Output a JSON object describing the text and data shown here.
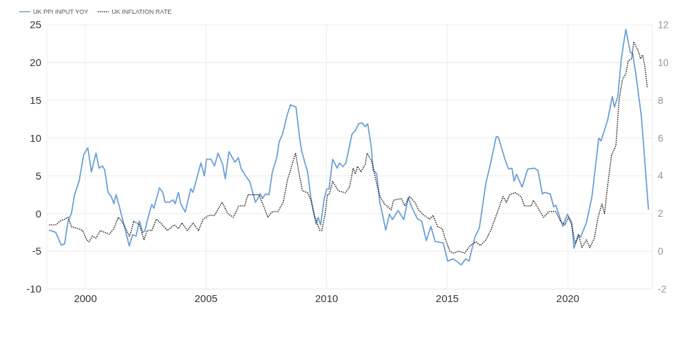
{
  "chart_data": {
    "type": "line",
    "legend": "top left",
    "grid": true,
    "marker": "none",
    "xlim": [
      1998.4,
      2023.5
    ],
    "xticks": [
      2000,
      2005,
      2010,
      2015,
      2020
    ],
    "ylim": [
      -10,
      25
    ],
    "yticks": [
      -10,
      -5,
      0,
      5,
      10,
      15,
      20,
      25
    ],
    "y2lim": [
      -2,
      12
    ],
    "y2ticks": [
      -2,
      0,
      2,
      4,
      6,
      8,
      10,
      12
    ],
    "series": [
      {
        "name": "UK PPI INPUT YOY",
        "color": "#6a9fd8",
        "line_style": "solid",
        "x": [
          1998.5,
          1998.77,
          1999.0,
          1999.14,
          1999.28,
          1999.42,
          1999.55,
          1999.74,
          1999.93,
          2000.1,
          2000.25,
          2000.44,
          2000.57,
          2000.71,
          2000.8,
          2000.94,
          2001.08,
          2001.18,
          2001.27,
          2001.4,
          2001.6,
          2001.82,
          2001.96,
          2002.1,
          2002.24,
          2002.38,
          2002.47,
          2002.56,
          2002.75,
          2002.84,
          2003.07,
          2003.21,
          2003.3,
          2003.49,
          2003.63,
          2003.72,
          2003.86,
          2003.95,
          2004.14,
          2004.37,
          2004.46,
          2004.79,
          2004.93,
          2005.02,
          2005.21,
          2005.35,
          2005.5,
          2005.69,
          2005.8,
          2005.95,
          2006.2,
          2006.34,
          2006.45,
          2006.64,
          2006.82,
          2006.96,
          2007.05,
          2007.25,
          2007.34,
          2007.47,
          2007.61,
          2007.75,
          2007.94,
          2008.03,
          2008.17,
          2008.36,
          2008.5,
          2008.73,
          2008.88,
          2008.97,
          2009.21,
          2009.35,
          2009.44,
          2009.56,
          2009.65,
          2009.75,
          2009.9,
          2010.0,
          2010.1,
          2010.25,
          2010.44,
          2010.53,
          2010.67,
          2010.8,
          2011.05,
          2011.19,
          2011.33,
          2011.47,
          2011.6,
          2011.7,
          2011.84,
          2011.93,
          2012.07,
          2012.2,
          2012.45,
          2012.6,
          2012.73,
          2012.96,
          2013.2,
          2013.38,
          2013.52,
          2013.76,
          2013.94,
          2014.13,
          2014.32,
          2014.5,
          2014.83,
          2015.02,
          2015.25,
          2015.58,
          2015.77,
          2015.9,
          2016.14,
          2016.33,
          2016.6,
          2016.8,
          2017.03,
          2017.12,
          2017.4,
          2017.54,
          2017.68,
          2017.77,
          2017.87,
          2018.1,
          2018.34,
          2018.62,
          2018.76,
          2018.94,
          2019.04,
          2019.27,
          2019.41,
          2019.5,
          2019.79,
          2019.98,
          2020.16,
          2020.25,
          2020.44,
          2020.53,
          2020.77,
          2021.0,
          2021.28,
          2021.37,
          2021.65,
          2021.84,
          2021.93,
          2022.07,
          2022.21,
          2022.4,
          2022.59,
          2022.68,
          2022.82,
          2023.05,
          2023.34
        ],
        "values": [
          -2.2,
          -2.5,
          -4.2,
          -4.0,
          -1.0,
          0,
          2.5,
          4.3,
          7.8,
          8.7,
          5.5,
          8.0,
          6.0,
          6.3,
          5.8,
          2.8,
          2.2,
          1.3,
          2.5,
          1.0,
          -1.5,
          -4.3,
          -2.8,
          -3.0,
          -1.0,
          -2.5,
          -2.3,
          -1.0,
          1.2,
          0.7,
          3.4,
          2.8,
          1.5,
          1.5,
          1.8,
          1.3,
          2.8,
          1.3,
          0.2,
          3.3,
          2.8,
          6.7,
          5.0,
          7.2,
          7.2,
          6.3,
          8.0,
          6.5,
          4.6,
          8.2,
          6.8,
          7.4,
          6.0,
          5.0,
          4.2,
          2.5,
          1.5,
          2.6,
          2.0,
          2.6,
          2.5,
          5.5,
          7.5,
          9.5,
          10.5,
          13.0,
          14.4,
          14.1,
          10.0,
          8.2,
          5.5,
          2.0,
          0.5,
          -1.4,
          -0.5,
          -1.5,
          2.0,
          3.2,
          3.3,
          7.2,
          6.0,
          6.7,
          6.2,
          6.7,
          10.5,
          11.0,
          11.9,
          12.0,
          11.5,
          11.9,
          9.1,
          5.7,
          5.3,
          1.6,
          -2.2,
          -0.1,
          -0.8,
          0.4,
          -0.8,
          2.1,
          0.9,
          -0.7,
          -1.0,
          -3.6,
          -1.7,
          -3.7,
          -3.9,
          -6.3,
          -6.0,
          -6.8,
          -6.0,
          -6.3,
          -3.2,
          -1.9,
          4.0,
          6.7,
          10.2,
          10.1,
          7.1,
          5.9,
          6.0,
          4.3,
          5.2,
          3.5,
          5.9,
          6.0,
          5.7,
          2.6,
          2.8,
          2.6,
          0.9,
          1.1,
          -1.7,
          -0.1,
          -1.2,
          -4.6,
          -2.9,
          -3.1,
          -1.2,
          2.3,
          10.0,
          9.6,
          12.4,
          15.5,
          14.1,
          15.5,
          20.4,
          24.4,
          21.3,
          21.3,
          18.4,
          12.7,
          0.5
        ]
      },
      {
        "name": "UK INFLATION RATE",
        "color": "#222222",
        "line_style": "dotted",
        "axis": "y2",
        "x": [
          1998.5,
          1998.77,
          1998.95,
          1999.14,
          1999.28,
          1999.42,
          1999.7,
          1999.88,
          2000.06,
          2000.15,
          2000.29,
          2000.44,
          2000.62,
          2000.8,
          2000.99,
          2001.18,
          2001.36,
          2001.5,
          2001.64,
          2001.82,
          2001.91,
          2002.0,
          2002.24,
          2002.43,
          2002.56,
          2002.75,
          2002.94,
          2003.12,
          2003.4,
          2003.68,
          2003.86,
          2004.0,
          2004.23,
          2004.46,
          2004.69,
          2004.88,
          2005.11,
          2005.35,
          2005.67,
          2005.9,
          2006.13,
          2006.36,
          2006.6,
          2006.74,
          2006.96,
          2007.19,
          2007.42,
          2007.56,
          2007.75,
          2007.98,
          2008.2,
          2008.38,
          2008.57,
          2008.71,
          2008.86,
          2009.0,
          2009.21,
          2009.35,
          2009.49,
          2009.72,
          2009.8,
          2009.94,
          2010.03,
          2010.1,
          2010.25,
          2010.49,
          2010.77,
          2010.95,
          2011.1,
          2011.19,
          2011.28,
          2011.42,
          2011.6,
          2011.68,
          2011.89,
          2012.07,
          2012.21,
          2012.4,
          2012.68,
          2012.77,
          2013.1,
          2013.24,
          2013.43,
          2013.66,
          2013.8,
          2014.04,
          2014.27,
          2014.41,
          2014.6,
          2014.79,
          2014.93,
          2015.11,
          2015.25,
          2015.49,
          2015.72,
          2015.95,
          2016.19,
          2016.37,
          2016.6,
          2016.8,
          2017.03,
          2017.31,
          2017.45,
          2017.59,
          2017.82,
          2018.06,
          2018.2,
          2018.48,
          2018.57,
          2018.76,
          2018.99,
          2019.22,
          2019.5,
          2019.69,
          2019.88,
          2020.02,
          2020.16,
          2020.3,
          2020.44,
          2020.58,
          2020.77,
          2020.91,
          2021.1,
          2021.25,
          2021.41,
          2021.52,
          2021.62,
          2021.81,
          2021.99,
          2022.12,
          2022.26,
          2022.4,
          2022.5,
          2022.64,
          2022.73,
          2022.92,
          2023.01,
          2023.1,
          2023.19,
          2023.29
        ],
        "values": [
          1.4,
          1.4,
          1.6,
          1.7,
          1.8,
          1.3,
          1.2,
          1.1,
          0.6,
          0.5,
          0.8,
          0.7,
          1.1,
          1.0,
          0.9,
          1.2,
          1.8,
          1.6,
          1.3,
          0.8,
          1.1,
          1.6,
          1.4,
          0.6,
          1.1,
          1.1,
          1.7,
          1.5,
          1.1,
          1.4,
          1.2,
          1.5,
          1.1,
          1.5,
          1.1,
          1.7,
          1.9,
          1.9,
          2.6,
          2.0,
          1.8,
          2.4,
          2.4,
          3.0,
          3.0,
          3.0,
          2.3,
          1.8,
          2.1,
          2.1,
          2.6,
          3.8,
          4.6,
          5.2,
          4.1,
          3.2,
          3.1,
          2.7,
          1.9,
          1.1,
          1.1,
          2.0,
          3.0,
          3.0,
          3.7,
          3.2,
          3.1,
          3.4,
          4.4,
          4.1,
          4.5,
          4.2,
          4.6,
          5.2,
          4.7,
          3.6,
          2.9,
          2.5,
          2.2,
          2.7,
          2.8,
          2.4,
          2.9,
          2.6,
          2.2,
          1.9,
          1.7,
          1.9,
          1.3,
          1.2,
          0.6,
          0.0,
          -0.1,
          0.0,
          -0.1,
          0.3,
          0.5,
          0.3,
          0.6,
          1.1,
          1.9,
          2.9,
          2.6,
          3.0,
          3.1,
          2.9,
          2.4,
          2.4,
          2.7,
          2.3,
          1.8,
          2.1,
          2.1,
          1.6,
          1.4,
          1.8,
          1.4,
          0.4,
          0.9,
          0.2,
          0.6,
          0.2,
          0.7,
          1.8,
          2.5,
          2.0,
          3.2,
          5.1,
          5.6,
          8.0,
          9.1,
          9.4,
          10.1,
          10.2,
          11.1,
          10.6,
          10.2,
          10.4,
          9.8,
          8.7
        ]
      }
    ]
  }
}
